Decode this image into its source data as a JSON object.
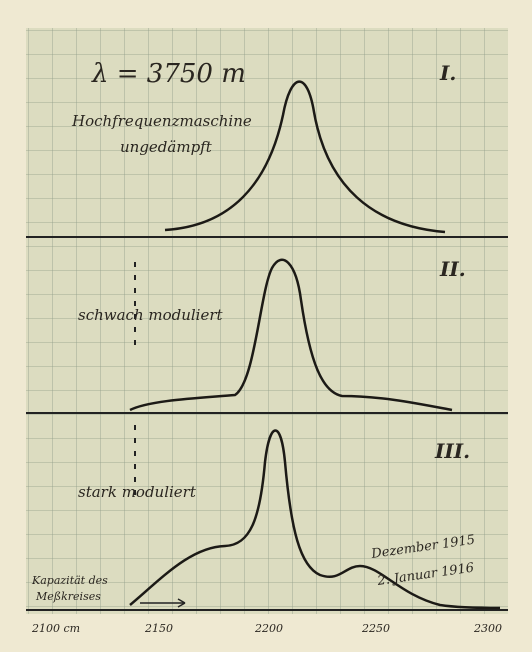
{
  "header": {
    "wavelength": "λ = 3750 m"
  },
  "panels": [
    {
      "numeral": "I.",
      "label": "Hochfrequenzmaschine",
      "label2": "ungedämpft"
    },
    {
      "numeral": "II.",
      "label": "schwach moduliert"
    },
    {
      "numeral": "III.",
      "label": "stark moduliert"
    }
  ],
  "note": {
    "line1": "Dezember 1915",
    "line2": "2. Januar 1916"
  },
  "axis": {
    "title": "Kapazität des",
    "title2": "Meßkreises",
    "labels": [
      "2100 cm",
      "2150",
      "2200",
      "2250",
      "2300"
    ]
  }
}
